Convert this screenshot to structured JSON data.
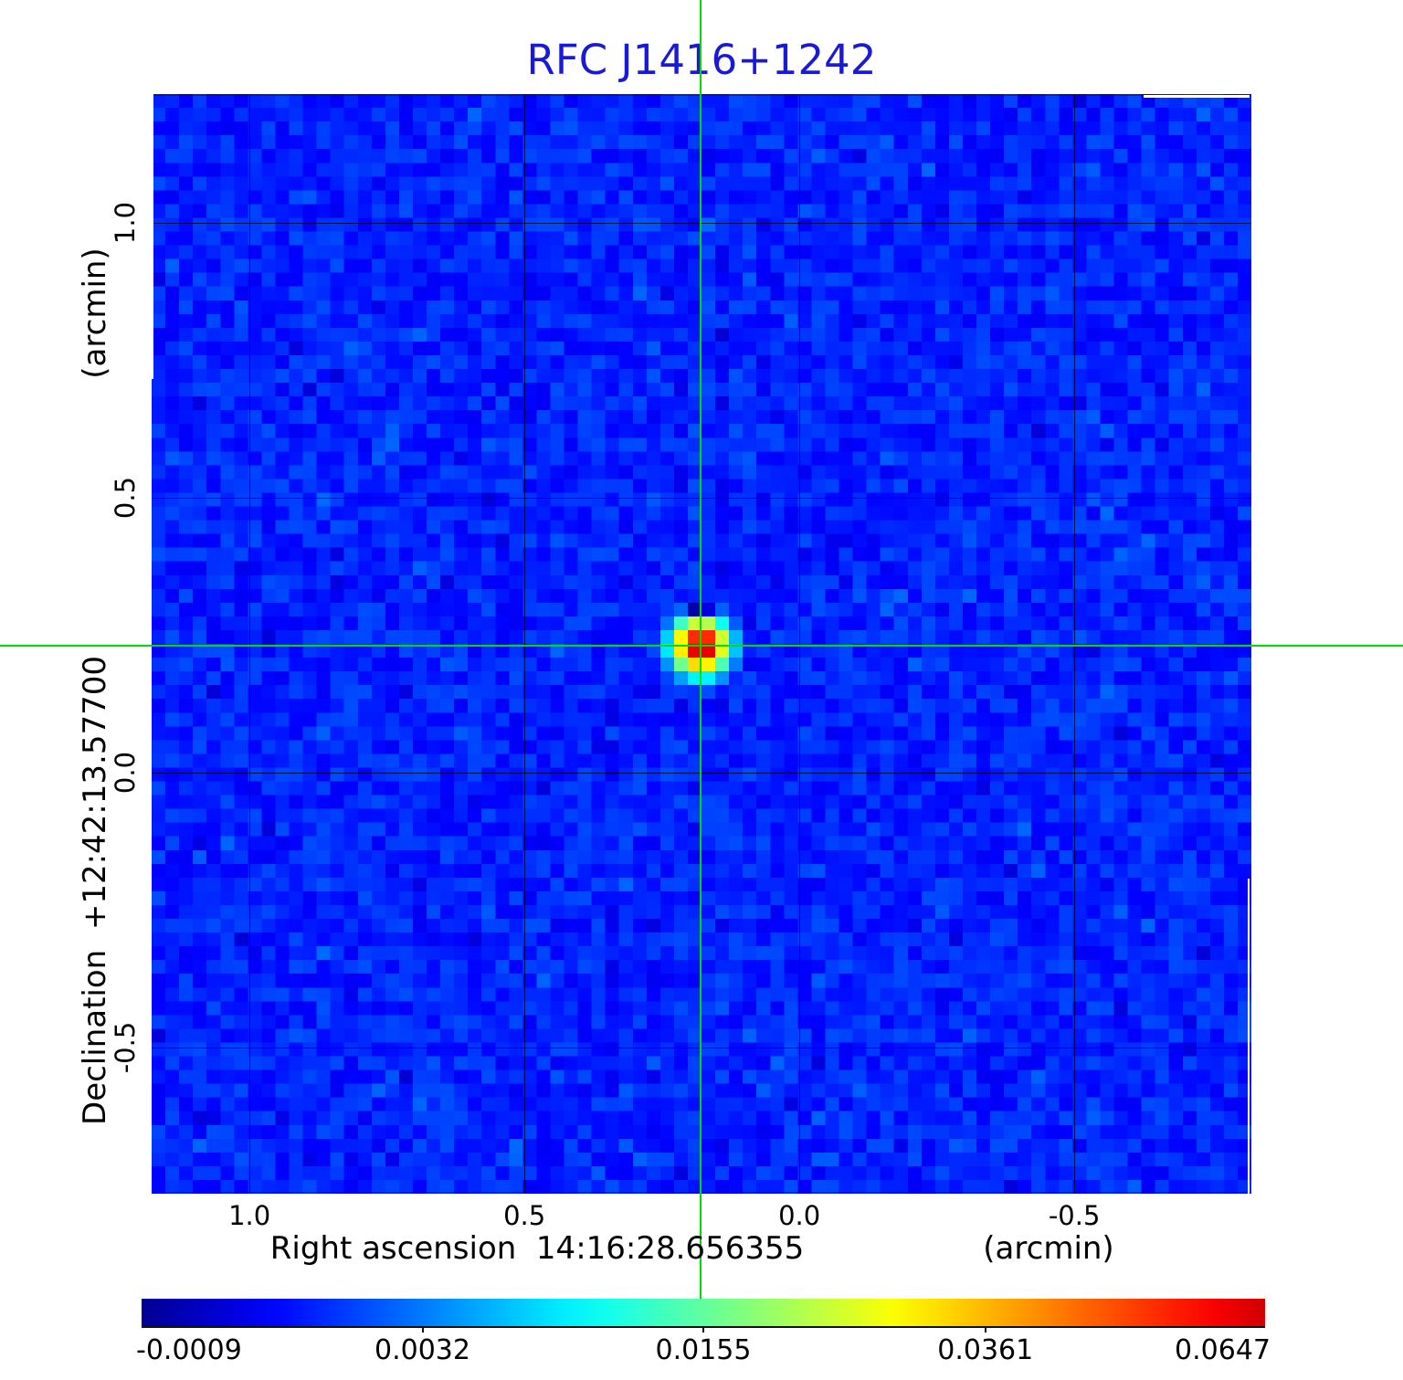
{
  "title": {
    "text": "RFC J1416+1242",
    "color": "#1a1ad6"
  },
  "axes": {
    "y_unit": "(arcmin)",
    "y_label": "Declination  +12:42:13.57700",
    "x_label": "Right ascension  14:16:28.656355",
    "x_unit": "(arcmin)",
    "x_tick_labels": [
      "1.0",
      "0.5",
      "0.0",
      "-0.5"
    ],
    "y_tick_labels": [
      "1.0",
      "0.5",
      "0.0",
      "-0.5"
    ]
  },
  "colorbar": {
    "tick_labels": [
      "-0.0009",
      "0.0032",
      "0.0155",
      "0.0361",
      "0.0647"
    ]
  },
  "chart_data": {
    "type": "heatmap",
    "title": "RFC J1416+1242",
    "xlabel": "Right ascension  14:16:28.656355 (arcmin)",
    "ylabel": "Declination  +12:42:13.57700 (arcmin)",
    "xlim": [
      1.178,
      -0.822
    ],
    "ylim": [
      -0.766,
      1.234
    ],
    "x_ticks": [
      1.0,
      0.5,
      0.0,
      -0.5
    ],
    "y_ticks": [
      1.0,
      0.5,
      0.0,
      -0.5
    ],
    "grid": true,
    "colormap": "jet",
    "color_scale": "sqrt",
    "data_min": -0.0009,
    "data_max": 0.0647,
    "colorbar_ticks": [
      -0.0009,
      0.0032,
      0.0155,
      0.0361,
      0.0647
    ],
    "source": {
      "x_arcmin": 0.18,
      "y_arcmin": 0.23,
      "peak": 0.0647
    },
    "crosshair": {
      "x_arcmin": 0.18,
      "y_arcmin": 0.23,
      "color": "#00dc00"
    },
    "background_rms_approx": 0.002
  }
}
